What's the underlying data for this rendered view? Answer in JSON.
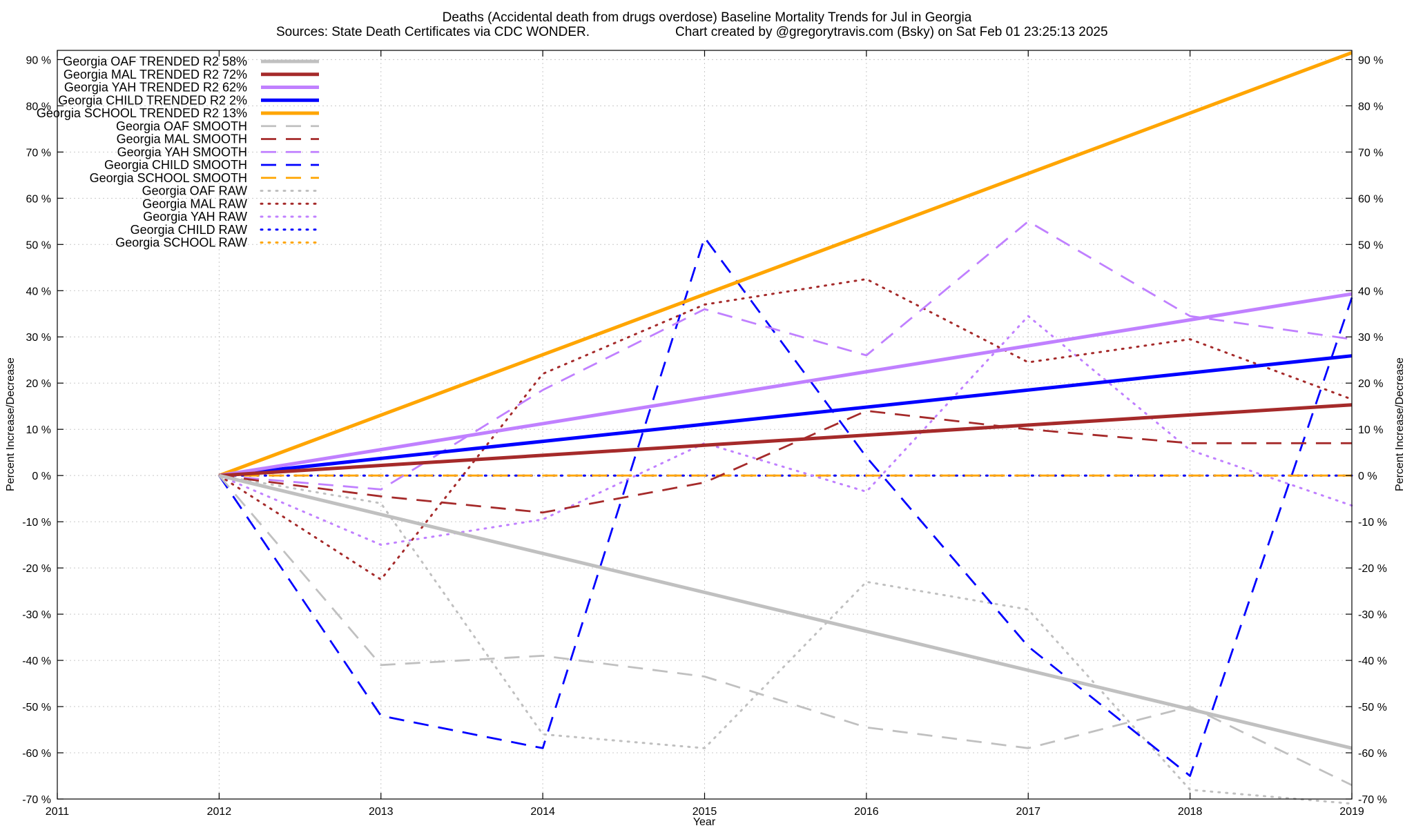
{
  "chart_data": {
    "type": "line",
    "title": "Deaths (Accidental death from drugs overdose)  Baseline Mortality Trends for Jul in Georgia",
    "subtitle_left": "Sources: State Death Certificates via CDC WONDER.",
    "subtitle_right": "Chart created by @gregorytravis.com (Bsky) on Sat Feb 01 23:25:13 2025",
    "xlabel": "Year",
    "ylabel": "Percent Increase/Decrease",
    "y2label": "Percent Increase/Decrease",
    "xlim": [
      2011,
      2019
    ],
    "ylim": [
      -70,
      92
    ],
    "x_ticks": [
      "2011",
      "2012",
      "2013",
      "2014",
      "2015",
      "2016",
      "2017",
      "2018",
      "2019"
    ],
    "y_tick_values": [
      -70,
      -60,
      -50,
      -40,
      -30,
      -20,
      -10,
      0,
      10,
      20,
      30,
      40,
      50,
      60,
      70,
      80,
      90
    ],
    "y_ticks": [
      "-70 %",
      "-60 %",
      "-50 %",
      "-40 %",
      "-30 %",
      "-20 %",
      "-10 %",
      "0 %",
      "10 %",
      "20 %",
      "30 %",
      "40 %",
      "50 %",
      "60 %",
      "70 %",
      "80 %",
      "90 %"
    ],
    "grid": true,
    "legend_position": "top-left",
    "series": [
      {
        "name": "Georgia OAF TRENDED R2  58%",
        "color": "#c0c0c0",
        "style": "solid",
        "x": [
          2012,
          2019
        ],
        "values": [
          0,
          -59
        ]
      },
      {
        "name": "Georgia MAL TRENDED R2  72%",
        "color": "#a52a2a",
        "style": "solid",
        "x": [
          2012,
          2019
        ],
        "values": [
          0,
          15.3
        ]
      },
      {
        "name": "Georgia YAH TRENDED R2  62%",
        "color": "#c080ff",
        "style": "solid",
        "x": [
          2012,
          2019
        ],
        "values": [
          0,
          39.3
        ]
      },
      {
        "name": "Georgia CHILD TRENDED R2   2%",
        "color": "#0000ff",
        "style": "solid",
        "x": [
          2012,
          2019
        ],
        "values": [
          0,
          25.9
        ]
      },
      {
        "name": "Georgia SCHOOL TRENDED R2  13%",
        "color": "#ffa500",
        "style": "solid",
        "x": [
          2012,
          2019
        ],
        "values": [
          0,
          91.5
        ]
      },
      {
        "name": "Georgia OAF SMOOTH",
        "color": "#c0c0c0",
        "style": "dashed",
        "x": [
          2012,
          2013,
          2014,
          2015,
          2016,
          2017,
          2018,
          2019
        ],
        "values": [
          0,
          -41,
          -39,
          -43.5,
          -54.5,
          -59,
          -50,
          -67
        ]
      },
      {
        "name": "Georgia MAL SMOOTH",
        "color": "#a52a2a",
        "style": "dashed",
        "x": [
          2012,
          2013,
          2014,
          2015,
          2016,
          2017,
          2018,
          2019
        ],
        "values": [
          0,
          -4.5,
          -8,
          -1.5,
          14,
          10,
          7,
          7
        ]
      },
      {
        "name": "Georgia YAH SMOOTH",
        "color": "#c080ff",
        "style": "dashed",
        "x": [
          2012,
          2013,
          2014,
          2015,
          2016,
          2017,
          2018,
          2019
        ],
        "values": [
          0,
          -3,
          18.5,
          36,
          26,
          55,
          34.5,
          29.5
        ]
      },
      {
        "name": "Georgia CHILD SMOOTH",
        "color": "#0000ff",
        "style": "dashed",
        "x": [
          2012,
          2013,
          2014,
          2015,
          2016,
          2017,
          2018,
          2019
        ],
        "values": [
          0,
          -52,
          -59,
          51.5,
          4,
          -37,
          -65,
          38.5
        ]
      },
      {
        "name": "Georgia SCHOOL SMOOTH",
        "color": "#ffa500",
        "style": "dashed",
        "x": [
          2012,
          2013,
          2014,
          2015,
          2016,
          2017,
          2018,
          2019
        ],
        "values": [
          0,
          0,
          0,
          0,
          0,
          0,
          0,
          0
        ]
      },
      {
        "name": "Georgia OAF RAW",
        "color": "#c0c0c0",
        "style": "dotted",
        "x": [
          2012,
          2013,
          2014,
          2015,
          2016,
          2017,
          2018,
          2019
        ],
        "values": [
          0,
          -6,
          -56,
          -59,
          -23,
          -29,
          -68,
          -71
        ]
      },
      {
        "name": "Georgia MAL RAW",
        "color": "#a52a2a",
        "style": "dotted",
        "x": [
          2012,
          2013,
          2014,
          2015,
          2016,
          2017,
          2018,
          2019
        ],
        "values": [
          0,
          -22.5,
          22,
          37,
          42.5,
          24.5,
          29.5,
          16.5
        ]
      },
      {
        "name": "Georgia YAH RAW",
        "color": "#c080ff",
        "style": "dotted",
        "x": [
          2012,
          2013,
          2014,
          2015,
          2016,
          2017,
          2018,
          2019
        ],
        "values": [
          0,
          -15,
          -9.5,
          7,
          -3.5,
          34.5,
          5.5,
          -6.5
        ]
      },
      {
        "name": "Georgia CHILD RAW",
        "color": "#0000ff",
        "style": "dotted",
        "x": [
          2012,
          2013,
          2014,
          2015,
          2016,
          2017,
          2018,
          2019
        ],
        "values": [
          0,
          0,
          0,
          0,
          0,
          0,
          0,
          0
        ]
      },
      {
        "name": "Georgia SCHOOL RAW",
        "color": "#ffa500",
        "style": "dotted",
        "x": [
          2012,
          2013,
          2014,
          2015,
          2016,
          2017,
          2018,
          2019
        ],
        "values": [
          0,
          0,
          0,
          0,
          0,
          0,
          0,
          0
        ]
      }
    ]
  }
}
